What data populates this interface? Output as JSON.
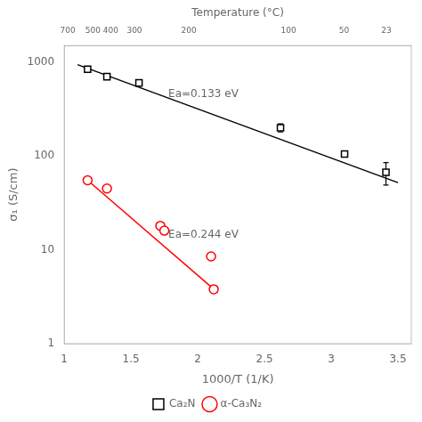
{
  "chart_data": {
    "type": "scatter",
    "xlabel": "1000/T (1/K)",
    "ylabel": "σ₁ (S/cm)",
    "x2label": "Temperature (°C)",
    "log": "y",
    "grid": false,
    "legend": "bottom",
    "xlim": [
      1.0,
      3.6
    ],
    "xticks": [
      1,
      1.5,
      2,
      2.5,
      3,
      3.5
    ],
    "ylim": [
      1,
      1500
    ],
    "yticks": [
      1,
      10,
      100,
      1000
    ],
    "x2lim": [
      1.0,
      3.6
    ],
    "x2ticks": [
      {
        "value": 1.027,
        "label": "700"
      },
      {
        "value": 1.215,
        "label": "500"
      },
      {
        "value": 1.348,
        "label": "400"
      },
      {
        "value": 1.526,
        "label": "300"
      },
      {
        "value": 1.934,
        "label": "200"
      },
      {
        "value": 2.681,
        "label": "100"
      },
      {
        "value": 3.096,
        "label": "50"
      },
      {
        "value": 3.413,
        "label": "23"
      }
    ],
    "series": [
      {
        "type": "line",
        "line_style": "solid",
        "color": "black",
        "x": [
          1.1,
          3.5
        ],
        "values": [
          940,
          52
        ]
      },
      {
        "type": "line",
        "line_style": "solid",
        "color": "red",
        "x": [
          1.175,
          2.15
        ],
        "values": [
          55,
          3.5
        ]
      },
      {
        "type": "scatter",
        "name": "Ca₂N",
        "marker": "square",
        "color": "black",
        "x": [
          1.175,
          1.32,
          1.56,
          2.62,
          3.1,
          3.41
        ],
        "values": [
          840,
          700,
          600,
          200,
          105,
          67
        ],
        "errors": [
          0,
          0,
          0,
          20,
          0,
          18
        ]
      },
      {
        "type": "scatter",
        "name": "α-Ca₃N₂",
        "marker": "circle",
        "color": "red",
        "x": [
          1.175,
          1.32,
          1.72,
          1.75,
          2.1,
          2.12
        ],
        "values": [
          55,
          45,
          18,
          16,
          8.5,
          3.8
        ]
      }
    ],
    "annotations": [
      {
        "text": "Ea=0.133 eV",
        "x": 1.78,
        "y": 420
      },
      {
        "text": "Ea=0.244 eV",
        "x": 1.78,
        "y": 13.5
      }
    ]
  }
}
